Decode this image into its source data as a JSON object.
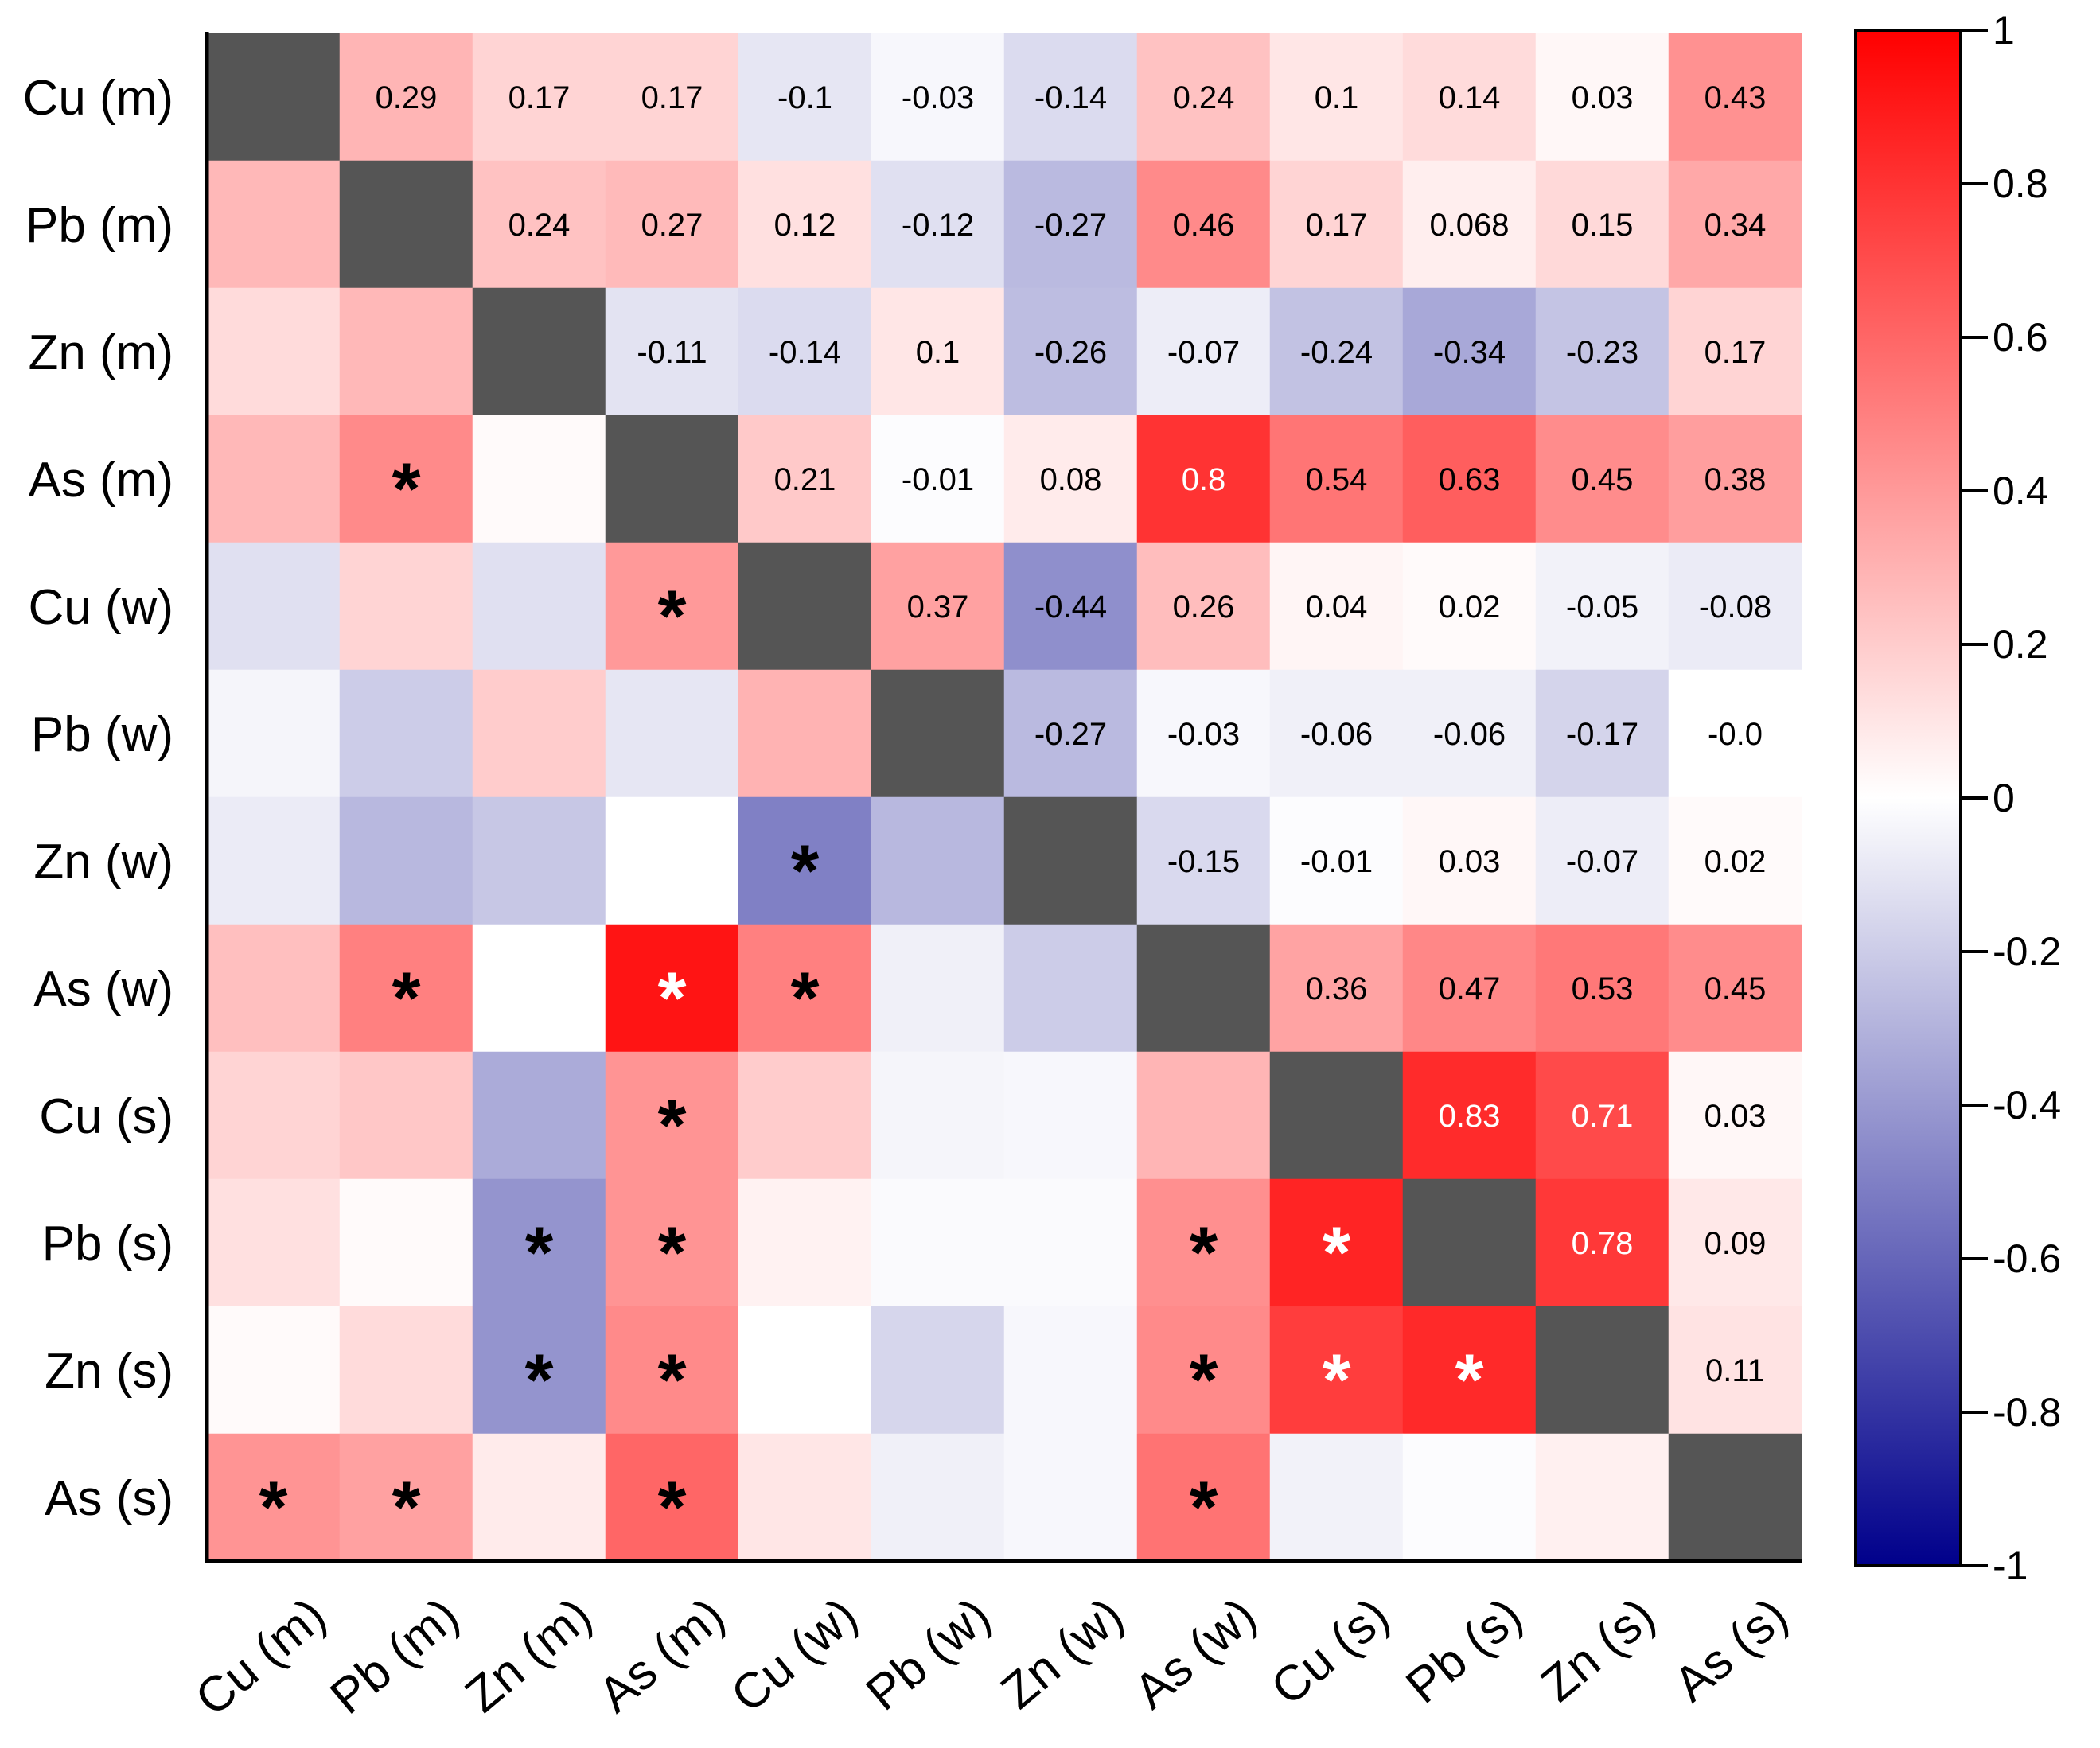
{
  "chart_data": {
    "type": "heatmap",
    "title": "",
    "labels_y": [
      "Cu (m)",
      "Pb (m)",
      "Zn (m)",
      "As (m)",
      "Cu (w)",
      "Pb (w)",
      "Zn  (w)",
      "As (w)",
      "Cu  (s)",
      "Pb (s)",
      "Zn (s)",
      "As (s)"
    ],
    "labels_x": [
      "Cu (m)",
      "Pb (m)",
      "Zn (m)",
      "As (m)",
      "Cu (w)",
      "Pb (w)",
      "Zn  (w)",
      "As (w)",
      "Cu  (s)",
      "Pb (s)",
      "Zn (s)",
      "As (s)"
    ],
    "upper_values": [
      [
        null,
        0.29,
        0.17,
        0.17,
        -0.1,
        -0.03,
        -0.14,
        0.24,
        0.1,
        0.14,
        0.03,
        0.43
      ],
      [
        null,
        null,
        0.24,
        0.27,
        0.12,
        -0.12,
        -0.27,
        0.46,
        0.17,
        0.068,
        0.15,
        0.34
      ],
      [
        null,
        null,
        null,
        -0.11,
        -0.14,
        0.1,
        -0.26,
        -0.07,
        -0.24,
        -0.34,
        -0.23,
        0.17
      ],
      [
        null,
        null,
        null,
        null,
        0.21,
        -0.01,
        0.08,
        0.8,
        0.54,
        0.63,
        0.45,
        0.38
      ],
      [
        null,
        null,
        null,
        null,
        null,
        0.37,
        -0.44,
        0.26,
        0.04,
        0.02,
        -0.05,
        -0.08
      ],
      [
        null,
        null,
        null,
        null,
        null,
        null,
        -0.27,
        -0.03,
        -0.06,
        -0.06,
        -0.17,
        -0.0
      ],
      [
        null,
        null,
        null,
        null,
        null,
        null,
        null,
        -0.15,
        -0.01,
        0.03,
        -0.07,
        0.02
      ],
      [
        null,
        null,
        null,
        null,
        null,
        null,
        null,
        null,
        0.36,
        0.47,
        0.53,
        0.45
      ],
      [
        null,
        null,
        null,
        null,
        null,
        null,
        null,
        null,
        null,
        0.83,
        0.71,
        0.03
      ],
      [
        null,
        null,
        null,
        null,
        null,
        null,
        null,
        null,
        null,
        null,
        0.78,
        0.09
      ],
      [
        null,
        null,
        null,
        null,
        null,
        null,
        null,
        null,
        null,
        null,
        null,
        0.11
      ],
      [
        null,
        null,
        null,
        null,
        null,
        null,
        null,
        null,
        null,
        null,
        null,
        null
      ]
    ],
    "value_labels": [
      [
        null,
        "0.29",
        "0.17",
        "0.17",
        "-0.1",
        "-0.03",
        "-0.14",
        "0.24",
        "0.1",
        "0.14",
        "0.03",
        "0.43"
      ],
      [
        null,
        null,
        "0.24",
        "0.27",
        "0.12",
        "-0.12",
        "-0.27",
        "0.46",
        "0.17",
        "0.068",
        "0.15",
        "0.34"
      ],
      [
        null,
        null,
        null,
        "-0.11",
        "-0.14",
        "0.1",
        "-0.26",
        "-0.07",
        "-0.24",
        "-0.34",
        "-0.23",
        "0.17"
      ],
      [
        null,
        null,
        null,
        null,
        "0.21",
        "-0.01",
        "0.08",
        "0.8",
        "0.54",
        "0.63",
        "0.45",
        "0.38"
      ],
      [
        null,
        null,
        null,
        null,
        null,
        "0.37",
        "-0.44",
        "0.26",
        "0.04",
        "0.02",
        "-0.05",
        "-0.08"
      ],
      [
        null,
        null,
        null,
        null,
        null,
        null,
        "-0.27",
        "-0.03",
        "-0.06",
        "-0.06",
        "-0.17",
        "-0.0"
      ],
      [
        null,
        null,
        null,
        null,
        null,
        null,
        null,
        "-0.15",
        "-0.01",
        "0.03",
        "-0.07",
        "0.02"
      ],
      [
        null,
        null,
        null,
        null,
        null,
        null,
        null,
        null,
        "0.36",
        "0.47",
        "0.53",
        "0.45"
      ],
      [
        null,
        null,
        null,
        null,
        null,
        null,
        null,
        null,
        null,
        "0.83",
        "0.71",
        "0.03"
      ],
      [
        null,
        null,
        null,
        null,
        null,
        null,
        null,
        null,
        null,
        null,
        "0.78",
        "0.09"
      ],
      [
        null,
        null,
        null,
        null,
        null,
        null,
        null,
        null,
        null,
        null,
        null,
        "0.11"
      ],
      [
        null,
        null,
        null,
        null,
        null,
        null,
        null,
        null,
        null,
        null,
        null,
        null
      ]
    ],
    "lower_values": [
      [
        null,
        null,
        null,
        null,
        null,
        null,
        null,
        null,
        null,
        null,
        null,
        null
      ],
      [
        0.28,
        null,
        null,
        null,
        null,
        null,
        null,
        null,
        null,
        null,
        null,
        null
      ],
      [
        0.14,
        0.28,
        null,
        null,
        null,
        null,
        null,
        null,
        null,
        null,
        null,
        null
      ],
      [
        0.28,
        0.46,
        0.02,
        null,
        null,
        null,
        null,
        null,
        null,
        null,
        null,
        null
      ],
      [
        -0.12,
        0.17,
        -0.12,
        0.4,
        null,
        null,
        null,
        null,
        null,
        null,
        null,
        null
      ],
      [
        -0.04,
        -0.2,
        0.2,
        -0.1,
        0.3,
        null,
        null,
        null,
        null,
        null,
        null,
        null
      ],
      [
        -0.08,
        -0.28,
        -0.22,
        0.0,
        -0.5,
        -0.28,
        null,
        null,
        null,
        null,
        null,
        null
      ],
      [
        0.25,
        0.5,
        0.0,
        0.92,
        0.5,
        -0.06,
        -0.2,
        null,
        null,
        null,
        null,
        null
      ],
      [
        0.17,
        0.22,
        -0.33,
        0.42,
        0.2,
        -0.04,
        -0.03,
        0.29,
        null,
        null,
        null,
        null
      ],
      [
        0.12,
        0.02,
        -0.42,
        0.42,
        0.05,
        -0.02,
        -0.02,
        0.44,
        0.86,
        null,
        null,
        null
      ],
      [
        0.02,
        0.14,
        -0.42,
        0.46,
        0.0,
        -0.16,
        -0.03,
        0.46,
        0.76,
        0.84,
        null,
        null
      ],
      [
        0.42,
        0.37,
        0.08,
        0.6,
        0.1,
        -0.06,
        -0.03,
        0.55,
        -0.05,
        -0.01,
        0.06,
        null
      ]
    ],
    "stars": [
      [
        3,
        1
      ],
      [
        4,
        3
      ],
      [
        6,
        4
      ],
      [
        7,
        1
      ],
      [
        7,
        3
      ],
      [
        7,
        4
      ],
      [
        8,
        3
      ],
      [
        9,
        2
      ],
      [
        9,
        3
      ],
      [
        9,
        7
      ],
      [
        9,
        8
      ],
      [
        10,
        2
      ],
      [
        10,
        3
      ],
      [
        10,
        7
      ],
      [
        10,
        8
      ],
      [
        10,
        9
      ],
      [
        11,
        0
      ],
      [
        11,
        1
      ],
      [
        11,
        3
      ],
      [
        11,
        7
      ]
    ],
    "star_symbol": "*",
    "diagonal_color": "#555555",
    "colorscale": {
      "min": -1,
      "max": 1,
      "stops": [
        "#00008b",
        "#ffffff",
        "#ff0000"
      ],
      "ticks": [
        1,
        0.8,
        0.6,
        0.4,
        0.2,
        0,
        -0.2,
        -0.4,
        -0.6,
        -0.8,
        -1
      ],
      "tick_labels": [
        "1",
        "0.8",
        "0.6",
        "0.4",
        "0.2",
        "0",
        "-0.2",
        "-0.4",
        "-0.6",
        "-0.8",
        "-1"
      ]
    }
  }
}
